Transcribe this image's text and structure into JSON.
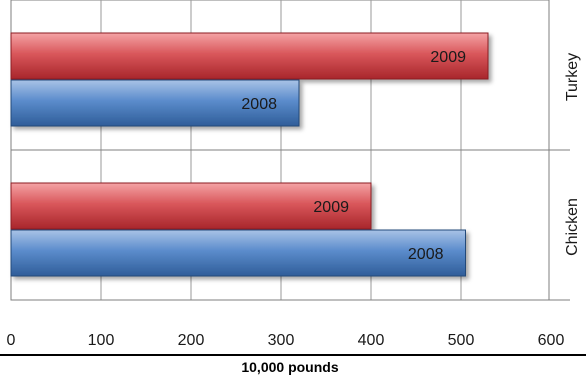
{
  "chart_data": {
    "type": "bar",
    "orientation": "horizontal",
    "categories": [
      "Turkey",
      "Chicken"
    ],
    "series": [
      {
        "name": "2009",
        "values": [
          530,
          400
        ],
        "color": "#d64b4f",
        "label": "2009"
      },
      {
        "name": "2008",
        "values": [
          320,
          505
        ],
        "color": "#4f81bd",
        "label": "2008"
      }
    ],
    "x_ticks": [
      "0",
      "100",
      "200",
      "300",
      "400",
      "500",
      "600"
    ],
    "xlim": [
      0,
      600
    ],
    "xlabel": "10,000 pounds",
    "grid": true
  }
}
